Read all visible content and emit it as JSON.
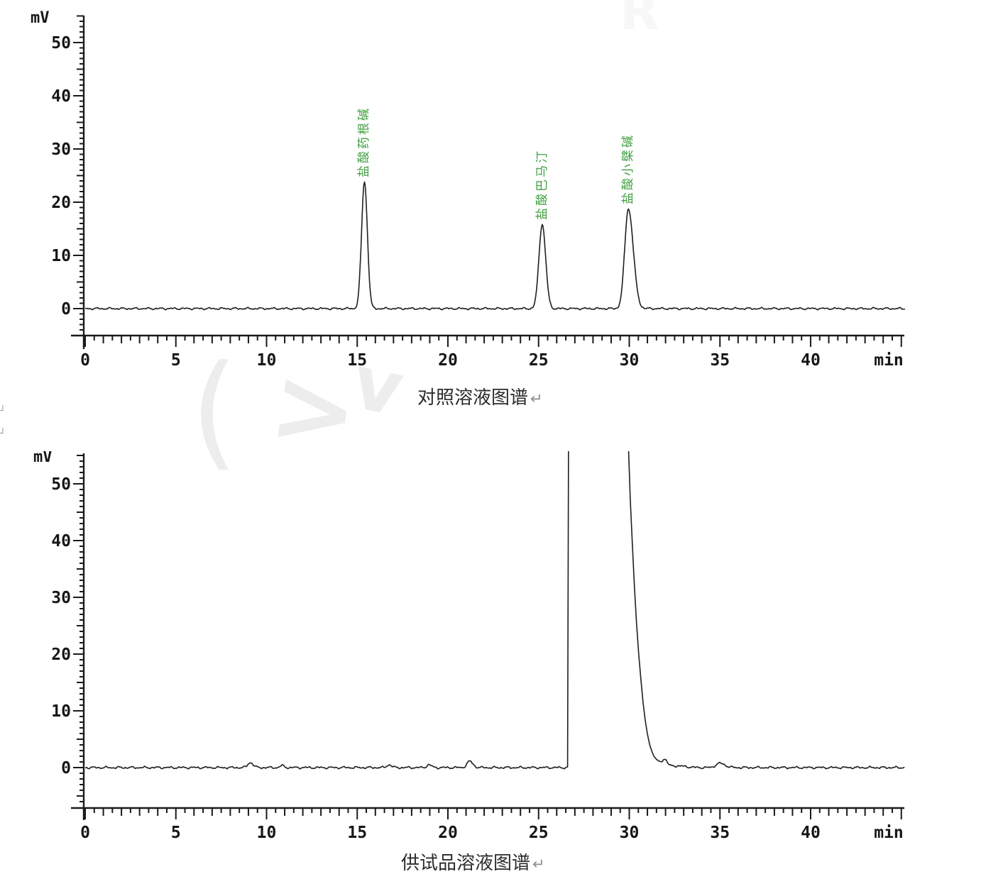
{
  "colors": {
    "trace": "#1f1f1f",
    "axis": "#1a1a1a",
    "tick_label": "#161616",
    "peak_label_green": "#3f9f3f",
    "caption_text": "#2b2b2b",
    "return_mark": "#8f8f8f",
    "underline_blue": "#4a66c8",
    "watermark": "#ededed"
  },
  "captions": {
    "top": "对照溶液图谱",
    "top_break": "↵",
    "bottom_underlined": "供试品溶液",
    "bottom_rest": "图谱",
    "bottom_break": "↵"
  },
  "margin_marks": {
    "mark1": "┘",
    "mark2": "┘"
  },
  "watermark": {
    "glyph1": "(",
    "glyph2": ">",
    "glyph3": "v",
    "glyph4": "R"
  },
  "chart_data": [
    {
      "type": "line",
      "title": "对照溶液图谱",
      "xlabel": "min",
      "ylabel": "mV",
      "xlim": [
        0,
        45.2
      ],
      "ylim": [
        -5,
        55
      ],
      "x_ticks": [
        0,
        5,
        10,
        15,
        20,
        25,
        30,
        35,
        40
      ],
      "y_ticks": [
        0,
        10,
        20,
        30,
        40,
        50
      ],
      "baseline_mv": 0,
      "noise_amp_mv": 0.22,
      "peaks": [
        {
          "rt_min": 15.4,
          "height_mv": 23.9,
          "sigma_min": 0.16,
          "sigma_right_min": 0.16,
          "label": "盐酸药根碱"
        },
        {
          "rt_min": 25.2,
          "height_mv": 15.9,
          "sigma_min": 0.18,
          "sigma_right_min": 0.19,
          "label": "盐酸巴马汀"
        },
        {
          "rt_min": 29.95,
          "height_mv": 18.8,
          "sigma_min": 0.2,
          "sigma_right_min": 0.27,
          "label": "盐酸小檗碱"
        }
      ]
    },
    {
      "type": "line",
      "title": "供试品溶液图谱",
      "xlabel": "min",
      "ylabel": "mV",
      "xlim": [
        0,
        45.2
      ],
      "ylim": [
        -7,
        55
      ],
      "x_ticks": [
        0,
        5,
        10,
        15,
        20,
        25,
        30,
        35,
        40
      ],
      "y_ticks": [
        0,
        10,
        20,
        30,
        40,
        50
      ],
      "baseline_mv": 0,
      "noise_amp_mv": 0.22,
      "peaks": [
        {
          "rt_min": 9.1,
          "height_mv": 0.9,
          "sigma_min": 0.13,
          "sigma_right_min": 0.16
        },
        {
          "rt_min": 10.85,
          "height_mv": 0.35,
          "sigma_min": 0.1,
          "sigma_right_min": 0.12
        },
        {
          "rt_min": 16.75,
          "height_mv": 0.5,
          "sigma_min": 0.12,
          "sigma_right_min": 0.14
        },
        {
          "rt_min": 18.95,
          "height_mv": 0.5,
          "sigma_min": 0.12,
          "sigma_right_min": 0.14
        },
        {
          "rt_min": 21.2,
          "height_mv": 1.1,
          "sigma_min": 0.15,
          "sigma_right_min": 0.18
        },
        {
          "rt_min": 31.92,
          "height_mv": 1.5,
          "sigma_min": 0.13,
          "sigma_right_min": 0.16
        },
        {
          "rt_min": 32.6,
          "height_mv": 0.3,
          "sigma_min": 0.4,
          "sigma_right_min": 0.5
        },
        {
          "rt_min": 35.0,
          "height_mv": 0.75,
          "sigma_min": 0.22,
          "sigma_right_min": 0.28
        }
      ],
      "offscale_peak": {
        "rise_rt_min": 26.6,
        "clipped_above_mv": 55,
        "clip_draw_mv": 70,
        "fall_anchors_rt_mv": [
          [
            29.88,
            70
          ],
          [
            29.96,
            56
          ],
          [
            30.06,
            47
          ],
          [
            30.16,
            40
          ],
          [
            30.28,
            32
          ],
          [
            30.4,
            25.5
          ],
          [
            30.52,
            20
          ],
          [
            30.64,
            15.5
          ],
          [
            30.76,
            11.5
          ],
          [
            30.88,
            8.3
          ],
          [
            31.0,
            5.9
          ],
          [
            31.12,
            4.1
          ],
          [
            31.24,
            2.9
          ],
          [
            31.36,
            2.0
          ],
          [
            31.5,
            1.45
          ],
          [
            31.64,
            1.15
          ],
          [
            31.78,
            1.0
          ]
        ]
      }
    }
  ]
}
